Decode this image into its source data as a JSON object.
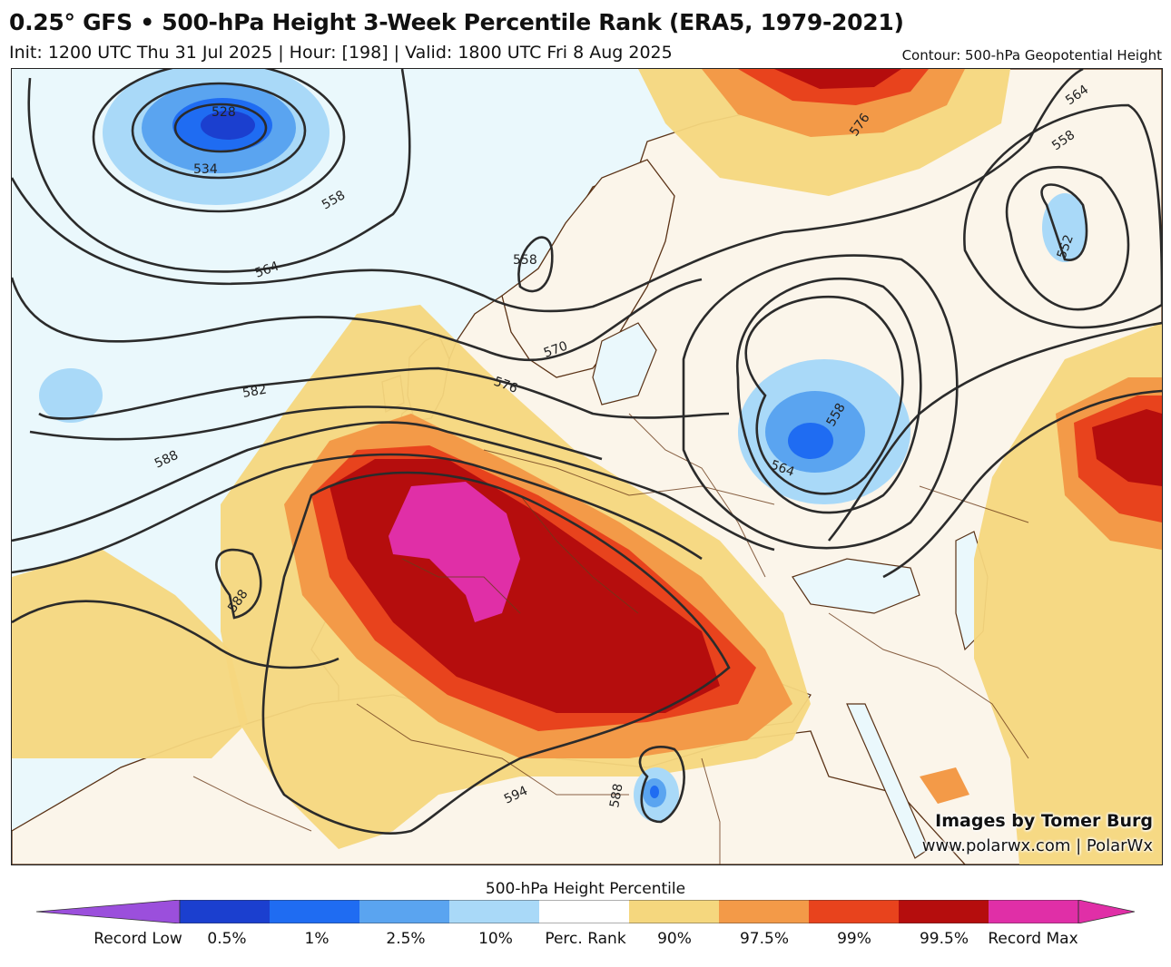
{
  "header": {
    "title": "0.25° GFS • 500-hPa Height 3-Week Percentile Rank (ERA5, 1979-2021)",
    "subtitle": "Init: 1200 UTC Thu 31 Jul 2025 | Hour: [198] | Valid: 1800 UTC Fri 8 Aug 2025",
    "contour_note": "Contour: 500-hPa Geopotential Height"
  },
  "credits": {
    "line1": "Images by Tomer Burg",
    "line2": "www.polarwx.com | PolarWx"
  },
  "contour_labels": [
    "528",
    "534",
    "552",
    "558",
    "564",
    "570",
    "576",
    "582",
    "588",
    "594"
  ],
  "colorbar": {
    "title": "500-hPa Height Percentile",
    "labels": [
      "Record Low",
      "0.5%",
      "1%",
      "2.5%",
      "10%",
      "Perc. Rank",
      "90%",
      "97.5%",
      "99%",
      "99.5%",
      "Record Max"
    ],
    "colors": [
      "#9b4fdc",
      "#1b3fcf",
      "#1f6cf2",
      "#5aa4f0",
      "#a9d9f8",
      "#ffffff",
      "#f5d77e",
      "#f39a48",
      "#e8431d",
      "#b50d0d",
      "#e02fa7"
    ]
  },
  "map_colors": {
    "ocean": "#eaf8fc",
    "land": "#fbf5ea",
    "coastline": "#5a3216",
    "contour": "#2b2b2b"
  }
}
